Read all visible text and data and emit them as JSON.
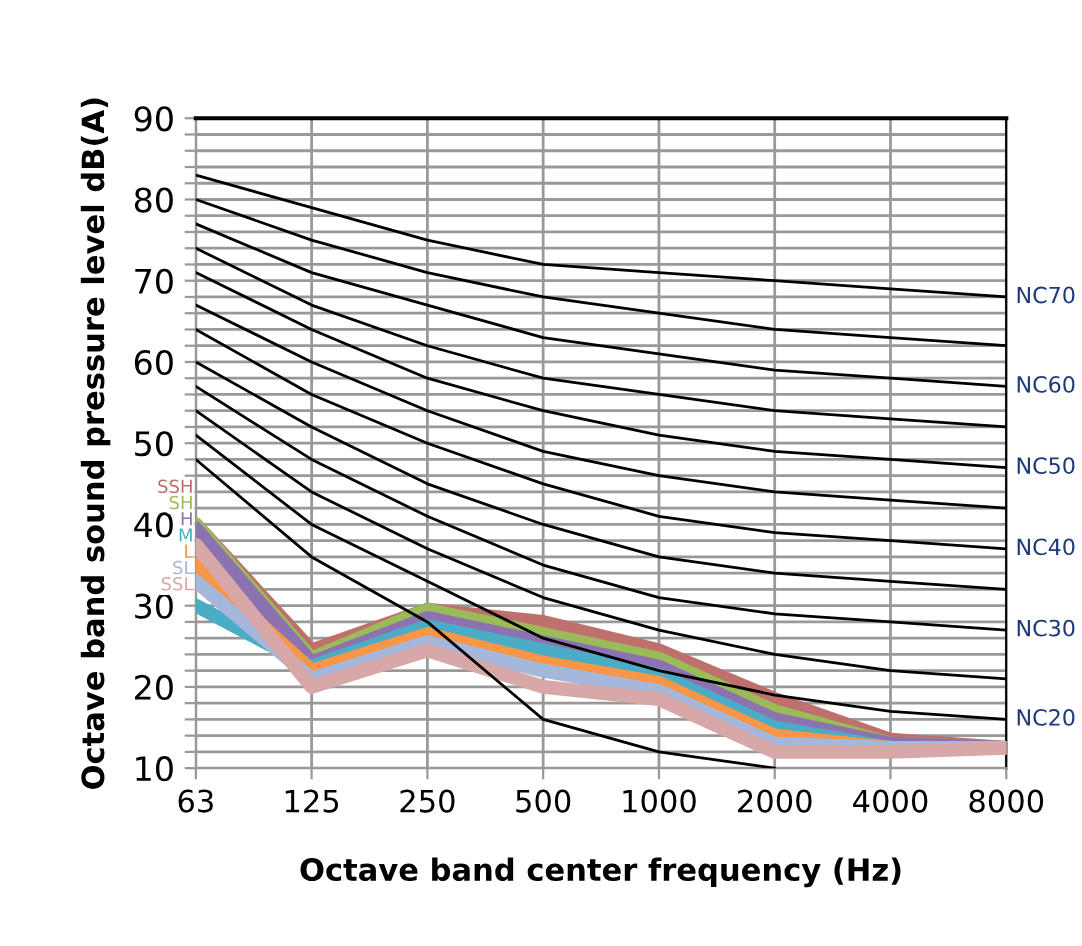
{
  "chart_data": {
    "type": "line",
    "xlabel": "Octave band center frequency (Hz)",
    "ylabel": "Octave band sound pressure level dB(A)",
    "categories": [
      "63",
      "125",
      "250",
      "500",
      "1000",
      "2000",
      "4000",
      "8000"
    ],
    "ylim": [
      10,
      90
    ],
    "yticks": [
      10,
      {
        "value": 12,
        "label": null
      },
      {
        "value": 14,
        "label": null
      },
      {
        "value": 16,
        "label": null
      },
      {
        "value": 18,
        "label": null
      },
      20,
      {
        "value": 22,
        "label": null
      },
      {
        "value": 24,
        "label": null
      },
      {
        "value": 26,
        "label": null
      },
      {
        "value": 28,
        "label": null
      },
      30,
      {
        "value": 32,
        "label": null
      },
      {
        "value": 34,
        "label": null
      },
      {
        "value": 36,
        "label": null
      },
      {
        "value": 38,
        "label": null
      },
      40,
      {
        "value": 42,
        "label": null
      },
      {
        "value": 44,
        "label": null
      },
      {
        "value": 46,
        "label": null
      },
      {
        "value": 48,
        "label": null
      },
      50,
      {
        "value": 52,
        "label": null
      },
      {
        "value": 54,
        "label": null
      },
      {
        "value": 56,
        "label": null
      },
      {
        "value": 58,
        "label": null
      },
      60,
      {
        "value": 62,
        "label": null
      },
      {
        "value": 64,
        "label": null
      },
      {
        "value": 66,
        "label": null
      },
      {
        "value": 68,
        "label": null
      },
      70,
      {
        "value": 72,
        "label": null
      },
      {
        "value": 74,
        "label": null
      },
      {
        "value": 76,
        "label": null
      },
      {
        "value": 78,
        "label": null
      },
      80,
      {
        "value": 82,
        "label": null
      },
      {
        "value": 84,
        "label": null
      },
      {
        "value": 86,
        "label": null
      },
      {
        "value": 88,
        "label": null
      },
      90
    ],
    "grid": true,
    "marker": "none",
    "series": [
      {
        "name": "NC70",
        "color": "#000000",
        "values": [
          83,
          79,
          75,
          72,
          71,
          70,
          69,
          68
        ]
      },
      {
        "color": "#000000",
        "values": [
          80,
          75,
          71,
          68,
          66,
          64,
          63,
          62
        ]
      },
      {
        "name": "NC60",
        "color": "#000000",
        "values": [
          77,
          71,
          67,
          63,
          61,
          59,
          58,
          57
        ]
      },
      {
        "color": "#000000",
        "values": [
          74,
          67,
          62,
          58,
          56,
          54,
          53,
          52
        ]
      },
      {
        "name": "NC50",
        "color": "#000000",
        "values": [
          71,
          64,
          58,
          54,
          51,
          49,
          48,
          47
        ]
      },
      {
        "color": "#000000",
        "values": [
          67,
          60,
          54,
          49,
          46,
          44,
          43,
          42
        ]
      },
      {
        "name": "NC40",
        "color": "#000000",
        "values": [
          64,
          56,
          50,
          45,
          41,
          39,
          38,
          37
        ]
      },
      {
        "color": "#000000",
        "values": [
          60,
          52,
          45,
          40,
          36,
          34,
          33,
          32
        ]
      },
      {
        "name": "NC30",
        "color": "#000000",
        "values": [
          57,
          48,
          41,
          35,
          31,
          29,
          28,
          27
        ]
      },
      {
        "color": "#000000",
        "values": [
          54,
          44,
          37,
          31,
          27,
          24,
          22,
          21
        ]
      },
      {
        "name": "NC20",
        "color": "#000000",
        "values": [
          51,
          40,
          33,
          26,
          22,
          19,
          17,
          16
        ]
      },
      {
        "color": "#000000",
        "values": [
          48,
          36,
          28,
          16,
          12,
          10,
          null,
          null
        ]
      },
      {
        "name": "SSH",
        "color": "#c0706c",
        "values": [
          40,
          24.5,
          29.5,
          28,
          24.5,
          18.5,
          13.5,
          12.5
        ]
      },
      {
        "name": "SH",
        "color": "#9bbb59",
        "values": [
          40,
          23.5,
          29.5,
          26.5,
          23.5,
          17,
          13,
          12.5
        ]
      },
      {
        "name": "H",
        "color": "#8c72b0",
        "values": [
          39.5,
          23,
          28.5,
          25.5,
          22.5,
          16,
          13,
          12.5
        ]
      },
      {
        "name": "M",
        "color": "#4bacc6",
        "values": [
          30,
          22.5,
          27.5,
          24.5,
          21.5,
          15,
          12.5,
          12.5
        ]
      },
      {
        "name": "L",
        "color": "#f79646",
        "values": [
          35,
          22,
          26.5,
          23,
          20.5,
          14,
          12.5,
          12.5
        ]
      },
      {
        "name": "SL",
        "color": "#a5b8dc",
        "values": [
          33,
          21,
          25.5,
          22,
          19.5,
          13,
          12.5,
          12.5
        ]
      },
      {
        "name": "SSL",
        "color": "#d8a8a8",
        "values": [
          37.5,
          20,
          24.5,
          20,
          18.5,
          12,
          12,
          12.5
        ]
      }
    ]
  }
}
